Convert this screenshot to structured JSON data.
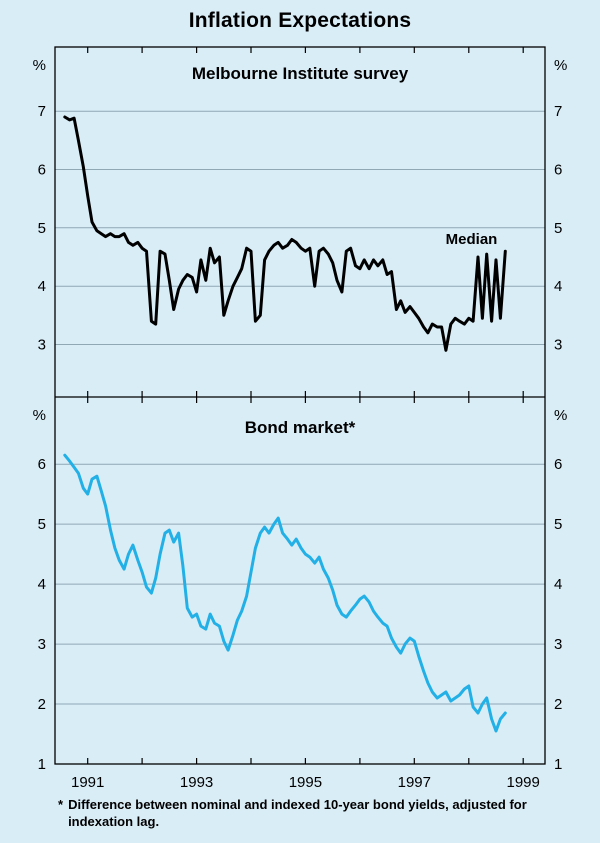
{
  "page": {
    "title": "Inflation Expectations"
  },
  "style": {
    "background": "#d9edf7",
    "grid_color": "#90a7b4",
    "frame_color": "#000000",
    "survey_line_color": "#000000",
    "bond_line_color": "#22b0e6"
  },
  "footnote": {
    "marker": "*",
    "text": "Difference between nominal and indexed 10-year bond yields, adjusted for indexation lag."
  },
  "chart_data": [
    {
      "type": "line",
      "panel": "top",
      "title": "Melbourne Institute survey",
      "unit": "%",
      "ylim": [
        2.1,
        8.1
      ],
      "yticks": [
        3,
        4,
        5,
        6,
        7
      ],
      "xlim": [
        1990.4,
        1999.4
      ],
      "xticks": [
        1991,
        1993,
        1995,
        1997,
        1999
      ],
      "grid": true,
      "annotation": {
        "text": "Median",
        "x": 1998.05,
        "y": 4.72
      },
      "series": [
        {
          "id": "melbourne-median",
          "name": "Median",
          "color": "#000000",
          "points": [
            [
              1990.58,
              6.9
            ],
            [
              1990.67,
              6.85
            ],
            [
              1990.75,
              6.88
            ],
            [
              1990.83,
              6.5
            ],
            [
              1990.92,
              6.05
            ],
            [
              1991.0,
              5.55
            ],
            [
              1991.08,
              5.1
            ],
            [
              1991.17,
              4.95
            ],
            [
              1991.25,
              4.9
            ],
            [
              1991.33,
              4.85
            ],
            [
              1991.42,
              4.9
            ],
            [
              1991.5,
              4.85
            ],
            [
              1991.58,
              4.85
            ],
            [
              1991.67,
              4.9
            ],
            [
              1991.75,
              4.75
            ],
            [
              1991.83,
              4.7
            ],
            [
              1991.92,
              4.75
            ],
            [
              1992.0,
              4.65
            ],
            [
              1992.08,
              4.6
            ],
            [
              1992.17,
              3.4
            ],
            [
              1992.25,
              3.35
            ],
            [
              1992.33,
              4.6
            ],
            [
              1992.42,
              4.55
            ],
            [
              1992.5,
              4.1
            ],
            [
              1992.58,
              3.6
            ],
            [
              1992.67,
              3.95
            ],
            [
              1992.75,
              4.1
            ],
            [
              1992.83,
              4.2
            ],
            [
              1992.92,
              4.15
            ],
            [
              1993.0,
              3.9
            ],
            [
              1993.08,
              4.45
            ],
            [
              1993.17,
              4.1
            ],
            [
              1993.25,
              4.65
            ],
            [
              1993.33,
              4.4
            ],
            [
              1993.42,
              4.5
            ],
            [
              1993.5,
              3.5
            ],
            [
              1993.58,
              3.75
            ],
            [
              1993.67,
              4.0
            ],
            [
              1993.75,
              4.15
            ],
            [
              1993.83,
              4.3
            ],
            [
              1993.92,
              4.65
            ],
            [
              1994.0,
              4.6
            ],
            [
              1994.08,
              3.4
            ],
            [
              1994.17,
              3.5
            ],
            [
              1994.25,
              4.45
            ],
            [
              1994.33,
              4.6
            ],
            [
              1994.42,
              4.7
            ],
            [
              1994.5,
              4.75
            ],
            [
              1994.58,
              4.65
            ],
            [
              1994.67,
              4.7
            ],
            [
              1994.75,
              4.8
            ],
            [
              1994.83,
              4.75
            ],
            [
              1994.92,
              4.65
            ],
            [
              1995.0,
              4.6
            ],
            [
              1995.08,
              4.65
            ],
            [
              1995.17,
              4.0
            ],
            [
              1995.25,
              4.6
            ],
            [
              1995.33,
              4.65
            ],
            [
              1995.42,
              4.55
            ],
            [
              1995.5,
              4.4
            ],
            [
              1995.58,
              4.1
            ],
            [
              1995.67,
              3.9
            ],
            [
              1995.75,
              4.6
            ],
            [
              1995.83,
              4.65
            ],
            [
              1995.92,
              4.35
            ],
            [
              1996.0,
              4.3
            ],
            [
              1996.08,
              4.45
            ],
            [
              1996.17,
              4.3
            ],
            [
              1996.25,
              4.45
            ],
            [
              1996.33,
              4.35
            ],
            [
              1996.42,
              4.45
            ],
            [
              1996.5,
              4.2
            ],
            [
              1996.58,
              4.25
            ],
            [
              1996.67,
              3.6
            ],
            [
              1996.75,
              3.75
            ],
            [
              1996.83,
              3.55
            ],
            [
              1996.92,
              3.65
            ],
            [
              1997.0,
              3.55
            ],
            [
              1997.08,
              3.45
            ],
            [
              1997.17,
              3.3
            ],
            [
              1997.25,
              3.2
            ],
            [
              1997.33,
              3.35
            ],
            [
              1997.42,
              3.3
            ],
            [
              1997.5,
              3.3
            ],
            [
              1997.58,
              2.9
            ],
            [
              1997.67,
              3.35
            ],
            [
              1997.75,
              3.45
            ],
            [
              1997.83,
              3.4
            ],
            [
              1997.92,
              3.35
            ],
            [
              1998.0,
              3.45
            ],
            [
              1998.08,
              3.4
            ],
            [
              1998.17,
              4.5
            ],
            [
              1998.25,
              3.45
            ],
            [
              1998.33,
              4.55
            ],
            [
              1998.42,
              3.4
            ],
            [
              1998.5,
              4.45
            ],
            [
              1998.58,
              3.45
            ],
            [
              1998.67,
              4.6
            ]
          ]
        }
      ]
    },
    {
      "type": "line",
      "panel": "bottom",
      "title": "Bond market*",
      "unit": "%",
      "ylim": [
        1,
        7.12
      ],
      "yticks": [
        1,
        2,
        3,
        4,
        5,
        6
      ],
      "xlim": [
        1990.4,
        1999.4
      ],
      "xticks": [
        1991,
        1993,
        1995,
        1997,
        1999
      ],
      "grid": true,
      "series": [
        {
          "id": "bond-market",
          "name": "Bond market",
          "color": "#22b0e6",
          "points": [
            [
              1990.58,
              6.15
            ],
            [
              1990.67,
              6.05
            ],
            [
              1990.75,
              5.95
            ],
            [
              1990.83,
              5.85
            ],
            [
              1990.92,
              5.6
            ],
            [
              1991.0,
              5.5
            ],
            [
              1991.08,
              5.75
            ],
            [
              1991.17,
              5.8
            ],
            [
              1991.25,
              5.55
            ],
            [
              1991.33,
              5.3
            ],
            [
              1991.42,
              4.9
            ],
            [
              1991.5,
              4.6
            ],
            [
              1991.58,
              4.4
            ],
            [
              1991.67,
              4.25
            ],
            [
              1991.75,
              4.5
            ],
            [
              1991.83,
              4.65
            ],
            [
              1991.92,
              4.4
            ],
            [
              1992.0,
              4.2
            ],
            [
              1992.08,
              3.95
            ],
            [
              1992.17,
              3.85
            ],
            [
              1992.25,
              4.1
            ],
            [
              1992.33,
              4.5
            ],
            [
              1992.42,
              4.85
            ],
            [
              1992.5,
              4.9
            ],
            [
              1992.58,
              4.7
            ],
            [
              1992.67,
              4.85
            ],
            [
              1992.75,
              4.3
            ],
            [
              1992.83,
              3.6
            ],
            [
              1992.92,
              3.45
            ],
            [
              1993.0,
              3.5
            ],
            [
              1993.08,
              3.3
            ],
            [
              1993.17,
              3.25
            ],
            [
              1993.25,
              3.5
            ],
            [
              1993.33,
              3.35
            ],
            [
              1993.42,
              3.3
            ],
            [
              1993.5,
              3.05
            ],
            [
              1993.58,
              2.9
            ],
            [
              1993.67,
              3.15
            ],
            [
              1993.75,
              3.4
            ],
            [
              1993.83,
              3.55
            ],
            [
              1993.92,
              3.8
            ],
            [
              1994.0,
              4.2
            ],
            [
              1994.08,
              4.6
            ],
            [
              1994.17,
              4.85
            ],
            [
              1994.25,
              4.95
            ],
            [
              1994.33,
              4.85
            ],
            [
              1994.42,
              5.0
            ],
            [
              1994.5,
              5.1
            ],
            [
              1994.58,
              4.85
            ],
            [
              1994.67,
              4.75
            ],
            [
              1994.75,
              4.65
            ],
            [
              1994.83,
              4.75
            ],
            [
              1994.92,
              4.6
            ],
            [
              1995.0,
              4.5
            ],
            [
              1995.08,
              4.45
            ],
            [
              1995.17,
              4.35
            ],
            [
              1995.25,
              4.45
            ],
            [
              1995.33,
              4.25
            ],
            [
              1995.42,
              4.1
            ],
            [
              1995.5,
              3.9
            ],
            [
              1995.58,
              3.65
            ],
            [
              1995.67,
              3.5
            ],
            [
              1995.75,
              3.45
            ],
            [
              1995.83,
              3.55
            ],
            [
              1995.92,
              3.65
            ],
            [
              1996.0,
              3.75
            ],
            [
              1996.08,
              3.8
            ],
            [
              1996.17,
              3.7
            ],
            [
              1996.25,
              3.55
            ],
            [
              1996.33,
              3.45
            ],
            [
              1996.42,
              3.35
            ],
            [
              1996.5,
              3.3
            ],
            [
              1996.58,
              3.1
            ],
            [
              1996.67,
              2.95
            ],
            [
              1996.75,
              2.85
            ],
            [
              1996.83,
              3.0
            ],
            [
              1996.92,
              3.1
            ],
            [
              1997.0,
              3.05
            ],
            [
              1997.08,
              2.8
            ],
            [
              1997.17,
              2.55
            ],
            [
              1997.25,
              2.35
            ],
            [
              1997.33,
              2.2
            ],
            [
              1997.42,
              2.1
            ],
            [
              1997.5,
              2.15
            ],
            [
              1997.58,
              2.2
            ],
            [
              1997.67,
              2.05
            ],
            [
              1997.75,
              2.1
            ],
            [
              1997.83,
              2.15
            ],
            [
              1997.92,
              2.25
            ],
            [
              1998.0,
              2.3
            ],
            [
              1998.08,
              1.95
            ],
            [
              1998.17,
              1.85
            ],
            [
              1998.25,
              2.0
            ],
            [
              1998.33,
              2.1
            ],
            [
              1998.42,
              1.75
            ],
            [
              1998.5,
              1.55
            ],
            [
              1998.58,
              1.75
            ],
            [
              1998.67,
              1.85
            ]
          ]
        }
      ]
    }
  ]
}
